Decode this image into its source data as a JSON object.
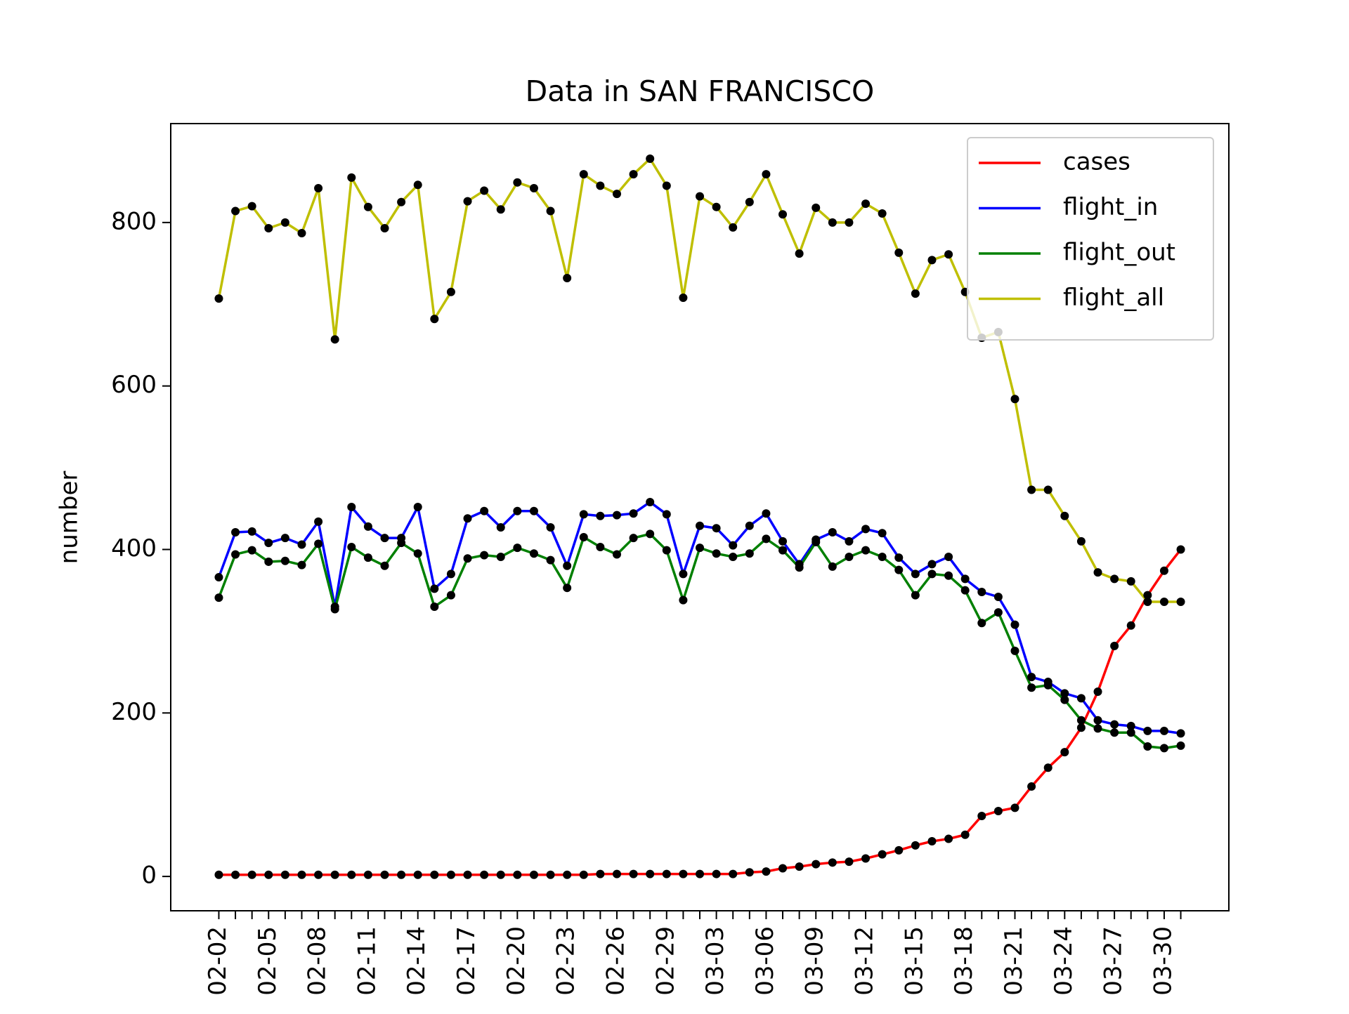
{
  "chart_data": {
    "type": "line",
    "title": "Data in SAN FRANCISCO",
    "y_label": "number",
    "categories": [
      "02-02",
      null,
      null,
      "02-05",
      null,
      null,
      "02-08",
      null,
      null,
      "02-11",
      null,
      null,
      "02-14",
      null,
      null,
      "02-17",
      null,
      null,
      "02-20",
      null,
      null,
      "02-23",
      null,
      null,
      "02-26",
      null,
      null,
      "02-29",
      null,
      null,
      "03-03",
      null,
      null,
      "03-06",
      null,
      null,
      "03-09",
      null,
      null,
      "03-12",
      null,
      null,
      "03-15",
      null,
      null,
      "03-18",
      null,
      null,
      "03-21",
      null,
      null,
      "03-24",
      null,
      null,
      "03-27",
      null,
      null,
      "03-30",
      null
    ],
    "series": [
      {
        "name": "cases",
        "color": "#ff0000",
        "values": [
          2,
          2,
          2,
          2,
          2,
          2,
          2,
          2,
          2,
          2,
          2,
          2,
          2,
          2,
          2,
          2,
          2,
          2,
          2,
          2,
          2,
          2,
          2,
          3,
          3,
          3,
          3,
          3,
          3,
          3,
          3,
          3,
          5,
          6,
          10,
          12,
          15,
          17,
          18,
          22,
          27,
          32,
          38,
          43,
          46,
          51,
          74,
          80,
          84,
          110,
          133,
          152,
          182,
          226,
          282,
          307,
          344,
          374,
          400
        ]
      },
      {
        "name": "flight_in",
        "color": "#0000ff",
        "values": [
          366,
          421,
          422,
          408,
          414,
          406,
          434,
          330,
          452,
          428,
          414,
          414,
          452,
          352,
          370,
          438,
          447,
          427,
          447,
          447,
          427,
          380,
          443,
          441,
          442,
          444,
          458,
          443,
          370,
          429,
          426,
          405,
          429,
          444,
          410,
          382,
          412,
          421,
          410,
          425,
          420,
          390,
          370,
          382,
          391,
          364,
          348,
          342,
          308,
          244,
          238,
          224,
          218,
          191,
          186,
          184,
          178,
          178,
          175
        ]
      },
      {
        "name": "flight_out",
        "color": "#008000",
        "values": [
          341,
          394,
          399,
          385,
          386,
          381,
          407,
          327,
          403,
          390,
          380,
          408,
          395,
          330,
          344,
          389,
          393,
          391,
          402,
          395,
          387,
          353,
          415,
          403,
          394,
          414,
          419,
          399,
          338,
          402,
          395,
          391,
          395,
          413,
          399,
          378,
          409,
          379,
          391,
          399,
          391,
          375,
          344,
          370,
          368,
          350,
          310,
          323,
          276,
          231,
          234,
          216,
          191,
          181,
          176,
          176,
          159,
          157,
          160
        ]
      },
      {
        "name": "flight_all",
        "color": "#bfbf00",
        "values": [
          707,
          814,
          820,
          793,
          800,
          787,
          842,
          657,
          855,
          819,
          793,
          825,
          846,
          682,
          715,
          826,
          839,
          816,
          849,
          842,
          814,
          732,
          859,
          845,
          835,
          859,
          878,
          845,
          708,
          832,
          819,
          794,
          825,
          859,
          810,
          762,
          818,
          800,
          800,
          823,
          811,
          763,
          713,
          754,
          761,
          715,
          659,
          666,
          584,
          473,
          473,
          441,
          410,
          372,
          364,
          361,
          336,
          336,
          336
        ]
      }
    ],
    "marker_color": "#000000",
    "ylim": [
      -42,
      921
    ],
    "yticks": [
      0,
      200,
      400,
      600,
      800
    ],
    "grid": false,
    "legend": "upper-right"
  }
}
